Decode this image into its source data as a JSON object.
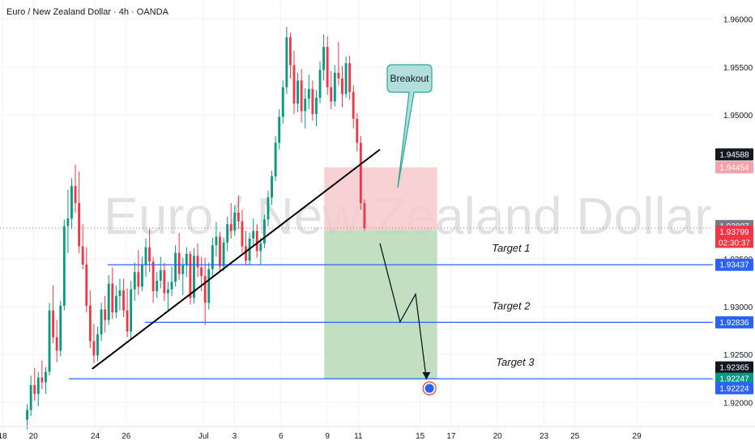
{
  "header": {
    "symbol": "Euro / New Zealand Dollar · 4h · OANDA",
    "watermark": "Euro / New Zealand Dollar"
  },
  "colors": {
    "up": "#089981",
    "down": "#f23645",
    "target_line": "#2962ff",
    "stop_zone": "#f7c9cd",
    "profit_zone": "#b7dbb6",
    "trendline": "#000000",
    "callout_fill": "#b2dfdb",
    "callout_border": "#26a69a"
  },
  "chart_data": {
    "type": "candlestick",
    "title": "Euro / New Zealand Dollar · 4h · OANDA",
    "ylim": [
      1.9175,
      1.962
    ],
    "yticks": [
      {
        "value": 1.96,
        "label": "1.96000"
      },
      {
        "value": 1.955,
        "label": "1.95500"
      },
      {
        "value": 1.95,
        "label": "1.95000"
      },
      {
        "value": 1.935,
        "label": "1.93500"
      },
      {
        "value": 1.93,
        "label": "1.93000"
      },
      {
        "value": 1.925,
        "label": "1.92500"
      },
      {
        "value": 1.92,
        "label": "1.92000"
      }
    ],
    "xticks": [
      {
        "value": 0,
        "label": "18"
      },
      {
        "value": 2,
        "label": "20"
      },
      {
        "value": 6,
        "label": "24"
      },
      {
        "value": 8,
        "label": "26"
      },
      {
        "value": 13,
        "label": "Jul"
      },
      {
        "value": 15,
        "label": "3"
      },
      {
        "value": 18,
        "label": "6"
      },
      {
        "value": 21,
        "label": "9"
      },
      {
        "value": 23,
        "label": "11"
      },
      {
        "value": 27,
        "label": "15"
      },
      {
        "value": 29,
        "label": "17"
      },
      {
        "value": 32,
        "label": "20"
      },
      {
        "value": 35,
        "label": "23"
      },
      {
        "value": 37,
        "label": "25"
      },
      {
        "value": 41,
        "label": "29"
      }
    ],
    "price_badges": [
      {
        "value": 1.94588,
        "label": "1.94588",
        "bg": "#131722"
      },
      {
        "value": 1.94454,
        "label": "1.94454",
        "bg": "#f7a1a8"
      },
      {
        "value": 1.93807,
        "label": "1.93807",
        "bg": "#787b86"
      },
      {
        "value": 1.93799,
        "label": "1.93799",
        "bg": "#f23645"
      },
      {
        "value": 1.93437,
        "label": "1.93437",
        "bg": "#2962ff"
      },
      {
        "value": 1.92836,
        "label": "1.92836",
        "bg": "#2962ff"
      },
      {
        "value": 1.92365,
        "label": "1.92365",
        "bg": "#131722"
      },
      {
        "value": 1.92247,
        "label": "1.92247",
        "bg": "#089981"
      },
      {
        "value": 1.92224,
        "label": "1.92224",
        "bg": "#2962ff"
      }
    ],
    "countdown": "02:30:37",
    "target_lines": [
      {
        "label": "Target 1",
        "value": 1.93437,
        "x_start": 6.8
      },
      {
        "label": "Target 2",
        "value": 1.92836,
        "x_start": 9.2
      },
      {
        "label": "Target 3",
        "value": 1.92247,
        "x_start": 4.3
      }
    ],
    "trendline": {
      "x": [
        5.8,
        24.4
      ],
      "y": [
        1.9235,
        1.9464
      ]
    },
    "trade_box": {
      "x_from": 20.8,
      "x_to": 28.1,
      "entry": 1.93799,
      "stop": 1.94454,
      "target": 1.92247
    },
    "projection": {
      "x": [
        24.4,
        25.7,
        26.7,
        27.4
      ],
      "y": [
        1.9366,
        1.9284,
        1.9313,
        1.9224
      ]
    },
    "callout": {
      "text": "Breakout"
    },
    "candles": [
      [
        1.9182,
        1.9198,
        1.9172,
        1.9192
      ],
      [
        1.9192,
        1.9228,
        1.9186,
        1.9218
      ],
      [
        1.9218,
        1.9236,
        1.9202,
        1.9209
      ],
      [
        1.9209,
        1.9232,
        1.9196,
        1.9226
      ],
      [
        1.9226,
        1.9244,
        1.9214,
        1.9221
      ],
      [
        1.9221,
        1.9237,
        1.9209,
        1.9232
      ],
      [
        1.9232,
        1.9304,
        1.9228,
        1.9296
      ],
      [
        1.9296,
        1.9322,
        1.9262,
        1.9268
      ],
      [
        1.9268,
        1.9286,
        1.9242,
        1.9254
      ],
      [
        1.9254,
        1.9306,
        1.9248,
        1.9301
      ],
      [
        1.9301,
        1.9391,
        1.9296,
        1.9384
      ],
      [
        1.9384,
        1.9422,
        1.9356,
        1.9392
      ],
      [
        1.9392,
        1.9434,
        1.9381,
        1.9426
      ],
      [
        1.9426,
        1.9448,
        1.9398,
        1.9408
      ],
      [
        1.9408,
        1.9441,
        1.9356,
        1.9363
      ],
      [
        1.9363,
        1.9386,
        1.9339,
        1.9344
      ],
      [
        1.9344,
        1.9362,
        1.9294,
        1.9301
      ],
      [
        1.9301,
        1.9317,
        1.9257,
        1.9264
      ],
      [
        1.9264,
        1.9282,
        1.9241,
        1.9249
      ],
      [
        1.9249,
        1.9279,
        1.9243,
        1.9271
      ],
      [
        1.9271,
        1.9304,
        1.9264,
        1.9297
      ],
      [
        1.9297,
        1.9311,
        1.9273,
        1.9286
      ],
      [
        1.9286,
        1.9333,
        1.9281,
        1.9324
      ],
      [
        1.9324,
        1.9341,
        1.9287,
        1.9294
      ],
      [
        1.9294,
        1.9322,
        1.9288,
        1.9311
      ],
      [
        1.9311,
        1.9329,
        1.9296,
        1.9317
      ],
      [
        1.9317,
        1.9329,
        1.9289,
        1.9296
      ],
      [
        1.9296,
        1.9319,
        1.9268,
        1.9274
      ],
      [
        1.9274,
        1.9327,
        1.9266,
        1.9318
      ],
      [
        1.9318,
        1.9346,
        1.9306,
        1.9336
      ],
      [
        1.9336,
        1.9359,
        1.9312,
        1.9321
      ],
      [
        1.9321,
        1.9352,
        1.9316,
        1.9344
      ],
      [
        1.9344,
        1.9371,
        1.9331,
        1.9362
      ],
      [
        1.9362,
        1.9381,
        1.9336,
        1.9347
      ],
      [
        1.9347,
        1.9352,
        1.9304,
        1.9316
      ],
      [
        1.9316,
        1.9336,
        1.9309,
        1.9327
      ],
      [
        1.9327,
        1.9352,
        1.9319,
        1.9338
      ],
      [
        1.9338,
        1.9346,
        1.9306,
        1.9314
      ],
      [
        1.9314,
        1.9326,
        1.9296,
        1.9318
      ],
      [
        1.9318,
        1.9342,
        1.9311,
        1.9326
      ],
      [
        1.9326,
        1.9364,
        1.9321,
        1.9356
      ],
      [
        1.9356,
        1.9377,
        1.9328,
        1.9334
      ],
      [
        1.9334,
        1.9351,
        1.9312,
        1.9344
      ],
      [
        1.9344,
        1.9362,
        1.9331,
        1.9355
      ],
      [
        1.9355,
        1.9358,
        1.9302,
        1.9309
      ],
      [
        1.9309,
        1.9361,
        1.9303,
        1.9353
      ],
      [
        1.9353,
        1.9366,
        1.9331,
        1.9341
      ],
      [
        1.9341,
        1.9352,
        1.9316,
        1.9332
      ],
      [
        1.9332,
        1.9351,
        1.9281,
        1.9304
      ],
      [
        1.9304,
        1.9346,
        1.9297,
        1.9339
      ],
      [
        1.9339,
        1.9372,
        1.9331,
        1.9364
      ],
      [
        1.9364,
        1.9388,
        1.9352,
        1.9373
      ],
      [
        1.9373,
        1.9378,
        1.9336,
        1.9342
      ],
      [
        1.9342,
        1.9372,
        1.9337,
        1.9367
      ],
      [
        1.9367,
        1.9394,
        1.9358,
        1.9386
      ],
      [
        1.9386,
        1.9408,
        1.9371,
        1.9379
      ],
      [
        1.9379,
        1.9406,
        1.9374,
        1.9398
      ],
      [
        1.9398,
        1.9416,
        1.9381,
        1.9389
      ],
      [
        1.9389,
        1.9401,
        1.9356,
        1.9363
      ],
      [
        1.9363,
        1.9379,
        1.9343,
        1.9348
      ],
      [
        1.9348,
        1.9377,
        1.9344,
        1.9371
      ],
      [
        1.9371,
        1.9392,
        1.9362,
        1.9379
      ],
      [
        1.9379,
        1.9386,
        1.9351,
        1.9358
      ],
      [
        1.9358,
        1.9372,
        1.9344,
        1.9366
      ],
      [
        1.9366,
        1.9396,
        1.9361,
        1.9391
      ],
      [
        1.9391,
        1.9421,
        1.9384,
        1.9414
      ],
      [
        1.9414,
        1.9442,
        1.9406,
        1.9436
      ],
      [
        1.9436,
        1.9478,
        1.9431,
        1.9471
      ],
      [
        1.9471,
        1.9506,
        1.9464,
        1.9498
      ],
      [
        1.9498,
        1.9536,
        1.9491,
        1.9529
      ],
      [
        1.9529,
        1.9592,
        1.9522,
        1.9581
      ],
      [
        1.9581,
        1.9586,
        1.9538,
        1.9552
      ],
      [
        1.9552,
        1.9567,
        1.9501,
        1.9512
      ],
      [
        1.9512,
        1.9544,
        1.9503,
        1.9536
      ],
      [
        1.9536,
        1.9548,
        1.9492,
        1.9504
      ],
      [
        1.9504,
        1.9528,
        1.9486,
        1.9517
      ],
      [
        1.9517,
        1.9542,
        1.9506,
        1.9527
      ],
      [
        1.9527,
        1.9536,
        1.9494,
        1.9501
      ],
      [
        1.9501,
        1.9526,
        1.9488,
        1.9518
      ],
      [
        1.9518,
        1.9556,
        1.9512,
        1.9547
      ],
      [
        1.9547,
        1.9584,
        1.9536,
        1.9571
      ],
      [
        1.9571,
        1.9582,
        1.9521,
        1.9529
      ],
      [
        1.9529,
        1.9546,
        1.9506,
        1.9514
      ],
      [
        1.9514,
        1.9552,
        1.9509,
        1.9544
      ],
      [
        1.9544,
        1.9576,
        1.9531,
        1.9538
      ],
      [
        1.9538,
        1.9551,
        1.9508,
        1.9522
      ],
      [
        1.9522,
        1.9561,
        1.9518,
        1.9554
      ],
      [
        1.9554,
        1.9562,
        1.9516,
        1.9524
      ],
      [
        1.9524,
        1.9531,
        1.9486,
        1.9496
      ],
      [
        1.9496,
        1.9502,
        1.9462,
        1.9471
      ],
      [
        1.9471,
        1.9478,
        1.9401,
        1.9408
      ],
      [
        1.9408,
        1.9412,
        1.9379,
        1.9382
      ]
    ]
  }
}
